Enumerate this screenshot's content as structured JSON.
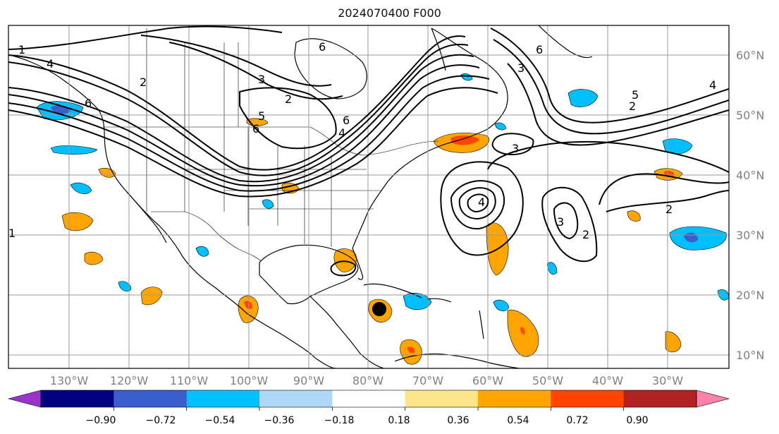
{
  "title": "2024070400 F000",
  "longitude_labels": [
    "130°W",
    "120°W",
    "110°W",
    "100°W",
    "90°W",
    "80°W",
    "70°W",
    "60°W",
    "50°W",
    "40°W",
    "30°W"
  ],
  "latitude_labels": [
    "60°N",
    "50°N",
    "40°N",
    "30°N",
    "20°N",
    "10°N"
  ],
  "colorbar": {
    "tick_labels": [
      "−0.90",
      "−0.72",
      "−0.54",
      "−0.36",
      "−0.18",
      "0.18",
      "0.36",
      "0.54",
      "0.72",
      "0.90"
    ],
    "colors": [
      "#9933cc",
      "#000080",
      "#3a5fcd",
      "#00bfff",
      "#add8f6",
      "#ffffff",
      "#fde68a",
      "#ffa500",
      "#ff4500",
      "#b22222",
      "#ff82ab"
    ]
  },
  "contour_labels": [
    "1",
    "4",
    "2",
    "6",
    "3",
    "2",
    "6",
    "5",
    "6",
    "4",
    "6",
    "3",
    "6",
    "3",
    "5",
    "2",
    "4",
    "3",
    "2",
    "2",
    "1",
    "4"
  ],
  "colors": {
    "axis_label": "#808080",
    "warm": "#ffa500",
    "warm_core": "#ff4500",
    "cool": "#00bfff",
    "cool_core": "#3a5fcd",
    "grid": "#9a9a9a"
  }
}
